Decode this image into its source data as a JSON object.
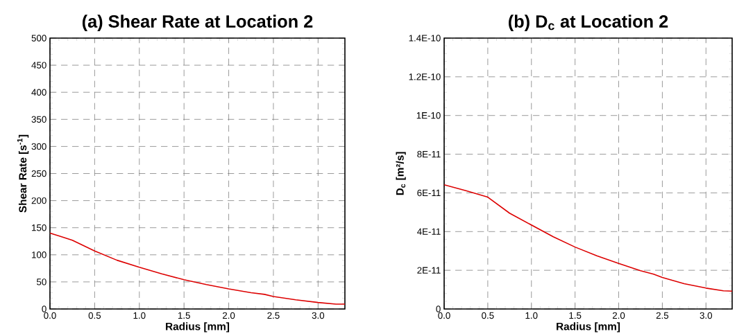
{
  "chart_data": [
    {
      "type": "line",
      "title": "(a)  Shear Rate at Location 2",
      "xlabel": "Radius [mm]",
      "ylabel": "Shear Rate [s$^{-1}$]",
      "x": [
        0,
        0.1,
        0.25,
        0.5,
        0.75,
        1.0,
        1.25,
        1.5,
        1.75,
        2.0,
        2.25,
        2.4,
        2.5,
        2.75,
        3.0,
        3.2,
        3.3
      ],
      "series": [
        {
          "color": "#dd0000",
          "values": [
            140,
            135,
            127,
            107,
            90,
            77,
            65,
            54,
            45,
            37,
            30,
            27,
            23,
            17,
            12,
            9,
            9
          ]
        }
      ],
      "xlim": [
        0,
        3.3
      ],
      "ylim": [
        0,
        500
      ],
      "xticks": [
        {
          "value": 0,
          "label": "0.0"
        },
        0.5,
        {
          "value": 1,
          "label": "1.0"
        },
        1.5,
        {
          "value": 2,
          "label": "2.0"
        },
        2.5,
        {
          "value": 3,
          "label": "3.0"
        }
      ],
      "yticks": [
        0,
        50,
        100,
        150,
        200,
        250,
        300,
        350,
        400,
        450,
        500
      ],
      "grid": true,
      "marker": "none",
      "line_style": "solid"
    },
    {
      "type": "line",
      "title": "(b)  D$_{c}$ at Location 2",
      "xlabel": "Radius [mm]",
      "ylabel": "D$_{c}$ [m²/s]",
      "x": [
        0,
        0.25,
        0.5,
        0.75,
        1.0,
        1.25,
        1.5,
        1.75,
        2.0,
        2.25,
        2.4,
        2.5,
        2.75,
        3.0,
        3.2,
        3.3
      ],
      "series": [
        {
          "color": "#dd0000",
          "values": [
            6.42e-11,
            6.11e-11,
            5.78e-11,
            4.95e-11,
            4.34e-11,
            3.73e-11,
            3.2e-11,
            2.75e-11,
            2.35e-11,
            1.98e-11,
            1.8e-11,
            1.63e-11,
            1.31e-11,
            1.08e-11,
            9.4e-12,
            9.2e-12
          ]
        }
      ],
      "xlim": [
        0,
        3.3
      ],
      "ylim": [
        0,
        1.4e-10
      ],
      "xticks": [
        {
          "value": 0,
          "label": "0.0"
        },
        0.5,
        {
          "value": 1,
          "label": "1.0"
        },
        1.5,
        {
          "value": 2,
          "label": "2.0"
        },
        2.5,
        {
          "value": 3,
          "label": "3.0"
        }
      ],
      "yticks": [
        0,
        {
          "value": 2e-11,
          "label": "2E-11"
        },
        {
          "value": 4e-11,
          "label": "4E-11"
        },
        {
          "value": 6e-11,
          "label": "6E-11"
        },
        {
          "value": 8e-11,
          "label": "8E-11"
        },
        {
          "value": 1e-10,
          "label": "1E-10"
        },
        {
          "value": 1.2e-10,
          "label": "1.2E-10"
        },
        {
          "value": 1.4e-10,
          "label": "1.4E-10"
        }
      ],
      "grid": true,
      "marker": "none",
      "line_style": "solid"
    }
  ]
}
